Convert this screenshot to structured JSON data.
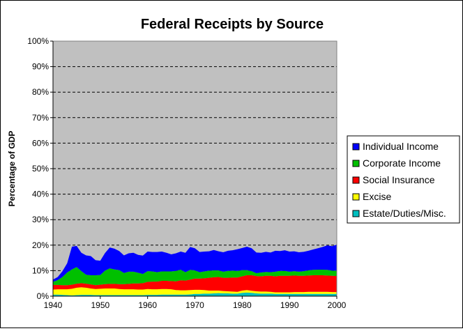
{
  "chart_data": {
    "type": "area",
    "title": "Federal Receipts by Source",
    "ylabel": "Percentage of GDP",
    "xlabel": "",
    "xlim": [
      1940,
      2000
    ],
    "ylim": [
      0,
      100
    ],
    "x_ticks": [
      "1940",
      "1950",
      "1960",
      "1970",
      "1980",
      "1990",
      "2000"
    ],
    "y_ticks": [
      "0%",
      "10%",
      "20%",
      "30%",
      "40%",
      "50%",
      "60%",
      "70%",
      "80%",
      "90%",
      "100%"
    ],
    "grid": "horizontal dashed",
    "stacked": true,
    "legend_position": "right",
    "x": [
      1940,
      1941,
      1942,
      1943,
      1944,
      1945,
      1946,
      1947,
      1948,
      1949,
      1950,
      1951,
      1952,
      1953,
      1954,
      1955,
      1956,
      1957,
      1958,
      1959,
      1960,
      1961,
      1962,
      1963,
      1964,
      1965,
      1966,
      1967,
      1968,
      1969,
      1970,
      1971,
      1972,
      1973,
      1974,
      1975,
      1976,
      1977,
      1978,
      1979,
      1980,
      1981,
      1982,
      1983,
      1984,
      1985,
      1986,
      1987,
      1988,
      1989,
      1990,
      1991,
      1992,
      1993,
      1994,
      1995,
      1996,
      1997,
      1998,
      1999,
      2000
    ],
    "series": [
      {
        "name": "Estate/Duties/Misc.",
        "color": "#00c0c0",
        "values": [
          0.6,
          0.6,
          0.5,
          0.4,
          0.3,
          0.4,
          0.5,
          0.5,
          0.5,
          0.4,
          0.4,
          0.4,
          0.4,
          0.4,
          0.4,
          0.4,
          0.4,
          0.4,
          0.4,
          0.4,
          0.5,
          0.5,
          0.5,
          0.6,
          0.6,
          0.6,
          0.6,
          0.6,
          0.6,
          0.7,
          0.9,
          0.9,
          1.0,
          1.0,
          1.1,
          1.2,
          1.1,
          1.1,
          1.0,
          1.0,
          1.3,
          1.4,
          1.3,
          1.1,
          1.0,
          1.0,
          1.0,
          0.9,
          0.9,
          0.9,
          0.9,
          0.9,
          0.9,
          0.9,
          0.9,
          0.9,
          0.9,
          0.9,
          0.9,
          0.9,
          0.9
        ]
      },
      {
        "name": "Excise",
        "color": "#ffff00",
        "values": [
          2.0,
          2.1,
          2.2,
          2.3,
          2.6,
          2.9,
          3.0,
          2.8,
          2.5,
          2.4,
          2.5,
          2.6,
          2.6,
          2.6,
          2.4,
          2.3,
          2.3,
          2.3,
          2.2,
          2.2,
          2.3,
          2.2,
          2.2,
          2.2,
          2.2,
          2.1,
          1.8,
          1.7,
          1.7,
          1.7,
          1.6,
          1.6,
          1.4,
          1.2,
          1.1,
          1.0,
          0.9,
          0.8,
          0.8,
          0.7,
          0.9,
          1.0,
          0.8,
          0.8,
          0.8,
          0.8,
          0.7,
          0.6,
          0.6,
          0.6,
          0.6,
          0.7,
          0.7,
          0.7,
          0.8,
          0.8,
          0.8,
          0.8,
          0.8,
          0.7,
          0.7
        ]
      },
      {
        "name": "Social Insurance",
        "color": "#ff0000",
        "values": [
          1.8,
          1.7,
          1.6,
          1.6,
          1.6,
          1.6,
          1.6,
          1.6,
          1.6,
          1.5,
          1.6,
          1.7,
          1.8,
          1.8,
          1.9,
          2.0,
          2.1,
          2.3,
          2.4,
          2.5,
          2.8,
          3.0,
          3.0,
          3.2,
          3.2,
          3.2,
          3.4,
          3.9,
          3.8,
          4.1,
          4.4,
          4.4,
          4.6,
          5.0,
          5.2,
          5.3,
          5.2,
          5.3,
          5.5,
          5.6,
          5.6,
          5.8,
          6.1,
          6.0,
          6.0,
          6.2,
          6.3,
          6.3,
          6.5,
          6.5,
          6.5,
          6.5,
          6.4,
          6.4,
          6.4,
          6.5,
          6.5,
          6.5,
          6.4,
          6.4,
          6.3
        ]
      },
      {
        "name": "Corporate Income",
        "color": "#00c000",
        "values": [
          1.2,
          1.9,
          3.2,
          5.0,
          6.0,
          6.5,
          4.7,
          3.5,
          3.6,
          3.9,
          3.8,
          5.3,
          6.1,
          5.7,
          5.5,
          4.4,
          4.8,
          4.6,
          4.2,
          3.6,
          4.2,
          4.0,
          3.7,
          3.7,
          3.7,
          3.8,
          4.1,
          4.2,
          3.3,
          3.8,
          3.2,
          2.5,
          2.7,
          2.8,
          2.7,
          2.6,
          2.4,
          2.7,
          2.7,
          2.6,
          2.4,
          2.0,
          1.6,
          1.1,
          1.5,
          1.5,
          1.4,
          1.8,
          1.9,
          1.9,
          1.6,
          1.7,
          1.6,
          1.8,
          2.0,
          2.1,
          2.2,
          2.2,
          2.2,
          2.0,
          2.1
        ]
      },
      {
        "name": "Individual Income",
        "color": "#0000ff",
        "values": [
          0.9,
          1.2,
          2.3,
          3.6,
          8.9,
          8.3,
          7.2,
          7.6,
          7.5,
          5.9,
          5.6,
          6.9,
          8.2,
          8.1,
          7.5,
          6.9,
          7.2,
          7.4,
          7.0,
          7.2,
          7.7,
          7.6,
          7.9,
          7.8,
          7.3,
          6.7,
          6.9,
          7.1,
          7.6,
          9.0,
          8.7,
          7.9,
          7.8,
          7.6,
          8.0,
          7.5,
          7.6,
          7.9,
          8.0,
          8.5,
          8.7,
          9.2,
          9.0,
          8.1,
          7.7,
          7.9,
          7.7,
          8.2,
          7.8,
          8.1,
          7.9,
          7.8,
          7.6,
          7.6,
          7.7,
          8.0,
          8.4,
          8.9,
          9.6,
          9.6,
          10.2
        ]
      }
    ]
  }
}
